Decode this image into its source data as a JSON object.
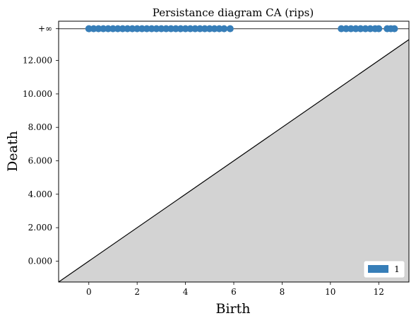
{
  "chart_data": {
    "type": "scatter",
    "title": "Persistance diagram CA (rips)",
    "xlabel": "Birth",
    "ylabel": "Death",
    "xlim": [
      -1.25,
      13.25
    ],
    "ylim": [
      -1.25,
      14.35
    ],
    "infinity_label": "+∞",
    "infinity_value": 13.9,
    "x_ticks": [
      0,
      2,
      4,
      6,
      8,
      10,
      12
    ],
    "x_tick_labels": [
      "0",
      "2",
      "4",
      "6",
      "8",
      "10",
      "12"
    ],
    "y_ticks": [
      0,
      2,
      4,
      6,
      8,
      10,
      12
    ],
    "y_tick_labels": [
      "0.000",
      "2.000",
      "4.000",
      "6.000",
      "8.000",
      "10.000",
      "12.000"
    ],
    "grid": false,
    "legend": {
      "position": "bottom-right",
      "entries": [
        {
          "label": "1",
          "color": "#377eb8"
        }
      ]
    },
    "diagonal_fill_color": "#d3d3d3",
    "series": [
      {
        "name": "1",
        "color": "#377eb8",
        "points": [
          {
            "birth": 0.0,
            "death": "inf"
          },
          {
            "birth": 0.2,
            "death": "inf"
          },
          {
            "birth": 0.4,
            "death": "inf"
          },
          {
            "birth": 0.6,
            "death": "inf"
          },
          {
            "birth": 0.8,
            "death": "inf"
          },
          {
            "birth": 1.0,
            "death": "inf"
          },
          {
            "birth": 1.2,
            "death": "inf"
          },
          {
            "birth": 1.4,
            "death": "inf"
          },
          {
            "birth": 1.6,
            "death": "inf"
          },
          {
            "birth": 1.8,
            "death": "inf"
          },
          {
            "birth": 2.0,
            "death": "inf"
          },
          {
            "birth": 2.2,
            "death": "inf"
          },
          {
            "birth": 2.4,
            "death": "inf"
          },
          {
            "birth": 2.6,
            "death": "inf"
          },
          {
            "birth": 2.8,
            "death": "inf"
          },
          {
            "birth": 3.0,
            "death": "inf"
          },
          {
            "birth": 3.2,
            "death": "inf"
          },
          {
            "birth": 3.4,
            "death": "inf"
          },
          {
            "birth": 3.6,
            "death": "inf"
          },
          {
            "birth": 3.8,
            "death": "inf"
          },
          {
            "birth": 4.0,
            "death": "inf"
          },
          {
            "birth": 4.2,
            "death": "inf"
          },
          {
            "birth": 4.4,
            "death": "inf"
          },
          {
            "birth": 4.6,
            "death": "inf"
          },
          {
            "birth": 4.8,
            "death": "inf"
          },
          {
            "birth": 5.0,
            "death": "inf"
          },
          {
            "birth": 5.2,
            "death": "inf"
          },
          {
            "birth": 5.4,
            "death": "inf"
          },
          {
            "birth": 5.6,
            "death": "inf"
          },
          {
            "birth": 5.85,
            "death": "inf"
          },
          {
            "birth": 10.45,
            "death": "inf"
          },
          {
            "birth": 10.65,
            "death": "inf"
          },
          {
            "birth": 10.85,
            "death": "inf"
          },
          {
            "birth": 11.05,
            "death": "inf"
          },
          {
            "birth": 11.25,
            "death": "inf"
          },
          {
            "birth": 11.45,
            "death": "inf"
          },
          {
            "birth": 11.65,
            "death": "inf"
          },
          {
            "birth": 11.85,
            "death": "inf"
          },
          {
            "birth": 12.0,
            "death": "inf"
          },
          {
            "birth": 12.35,
            "death": "inf"
          },
          {
            "birth": 12.5,
            "death": "inf"
          },
          {
            "birth": 12.65,
            "death": "inf"
          }
        ]
      }
    ]
  }
}
